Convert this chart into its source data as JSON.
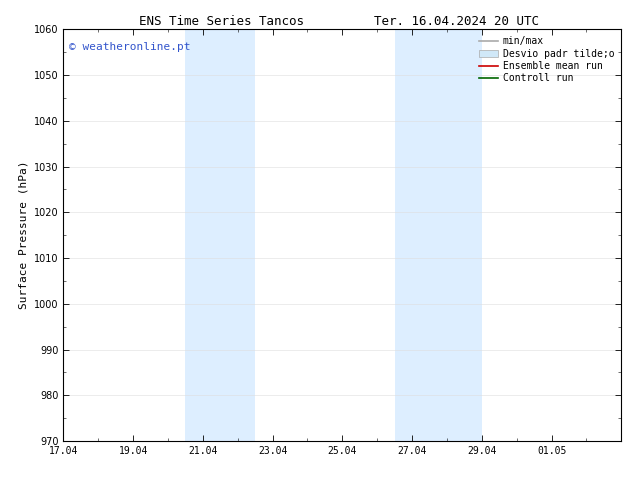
{
  "title_left": "ENS Time Series Tancos",
  "title_right": "Ter. 16.04.2024 20 UTC",
  "ylabel": "Surface Pressure (hPa)",
  "ylim": [
    970,
    1060
  ],
  "yticks": [
    970,
    980,
    990,
    1000,
    1010,
    1020,
    1030,
    1040,
    1050,
    1060
  ],
  "xlim": [
    0,
    16
  ],
  "xtick_labels": [
    "17.04",
    "19.04",
    "21.04",
    "23.04",
    "25.04",
    "27.04",
    "29.04",
    "01.05"
  ],
  "xtick_positions": [
    0,
    2,
    4,
    6,
    8,
    10,
    12,
    14
  ],
  "shaded_bands": [
    {
      "x_start": 3.5,
      "x_end": 5.5
    },
    {
      "x_start": 9.5,
      "x_end": 12.0
    }
  ],
  "shaded_color": "#ddeeff",
  "watermark_text": "© weatheronline.pt",
  "watermark_color": "#3355cc",
  "legend_entries": [
    {
      "label": "min/max",
      "color": "#aaaaaa",
      "type": "line"
    },
    {
      "label": "Desvio padr tilde;o",
      "color": "#d0e8f8",
      "type": "band"
    },
    {
      "label": "Ensemble mean run",
      "color": "#cc0000",
      "type": "line"
    },
    {
      "label": "Controll run",
      "color": "#006600",
      "type": "line"
    }
  ],
  "bg_color": "#ffffff",
  "spine_color": "#000000",
  "font_size_title": 9,
  "font_size_axis": 8,
  "font_size_tick": 7,
  "font_size_legend": 7,
  "font_size_watermark": 8
}
